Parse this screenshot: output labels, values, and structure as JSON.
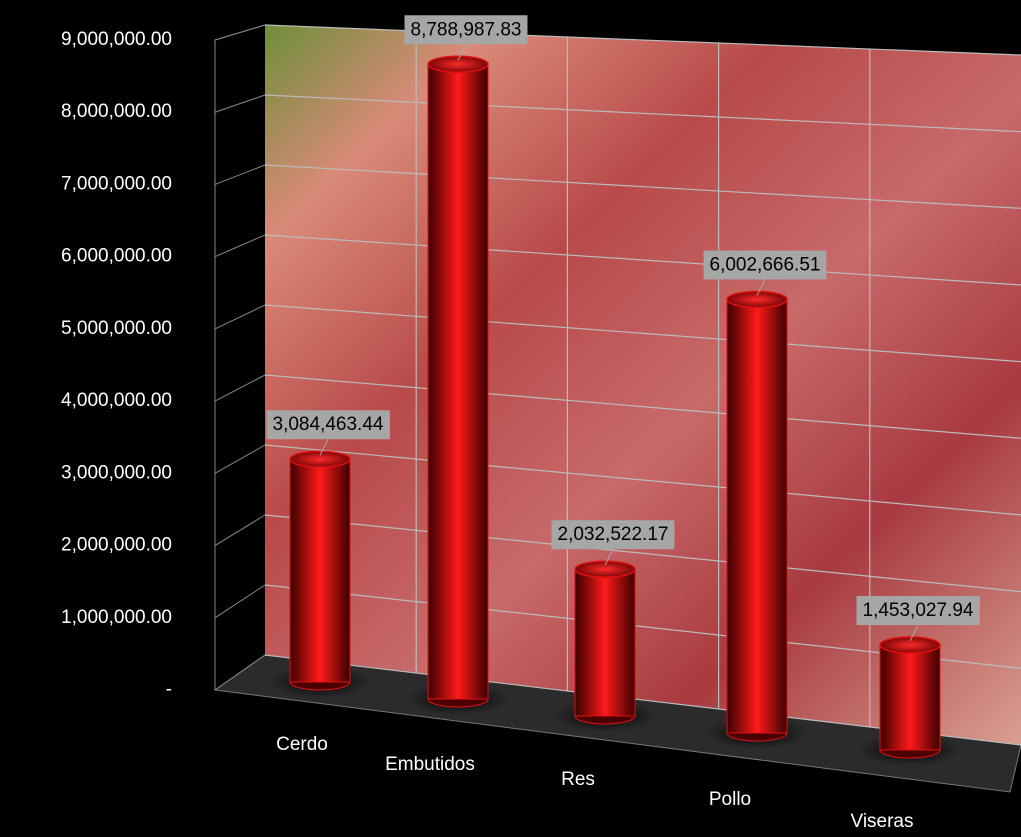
{
  "chart_data": {
    "type": "bar",
    "categories": [
      "Cerdo",
      "Embutidos",
      "Res",
      "Pollo",
      "Viseras"
    ],
    "values": [
      3084463.44,
      8788987.83,
      2032522.17,
      6002666.51,
      1453027.94
    ],
    "value_labels": [
      "3,084,463.44",
      "8,788,987.83",
      "2,032,522.17",
      "6,002,666.51",
      "1,453,027.94"
    ],
    "color": "#e01010",
    "ylim": [
      0,
      9000000
    ],
    "yticks": [
      {
        "value": 0,
        "label": "-"
      },
      {
        "value": 1000000,
        "label": "1,000,000.00"
      },
      {
        "value": 2000000,
        "label": "2,000,000.00"
      },
      {
        "value": 3000000,
        "label": "3,000,000.00"
      },
      {
        "value": 4000000,
        "label": "4,000,000.00"
      },
      {
        "value": 5000000,
        "label": "5,000,000.00"
      },
      {
        "value": 6000000,
        "label": "6,000,000.00"
      },
      {
        "value": 7000000,
        "label": "7,000,000.00"
      },
      {
        "value": 8000000,
        "label": "8,000,000.00"
      },
      {
        "value": 9000000,
        "label": "9,000,000.00"
      }
    ],
    "grid": true
  }
}
